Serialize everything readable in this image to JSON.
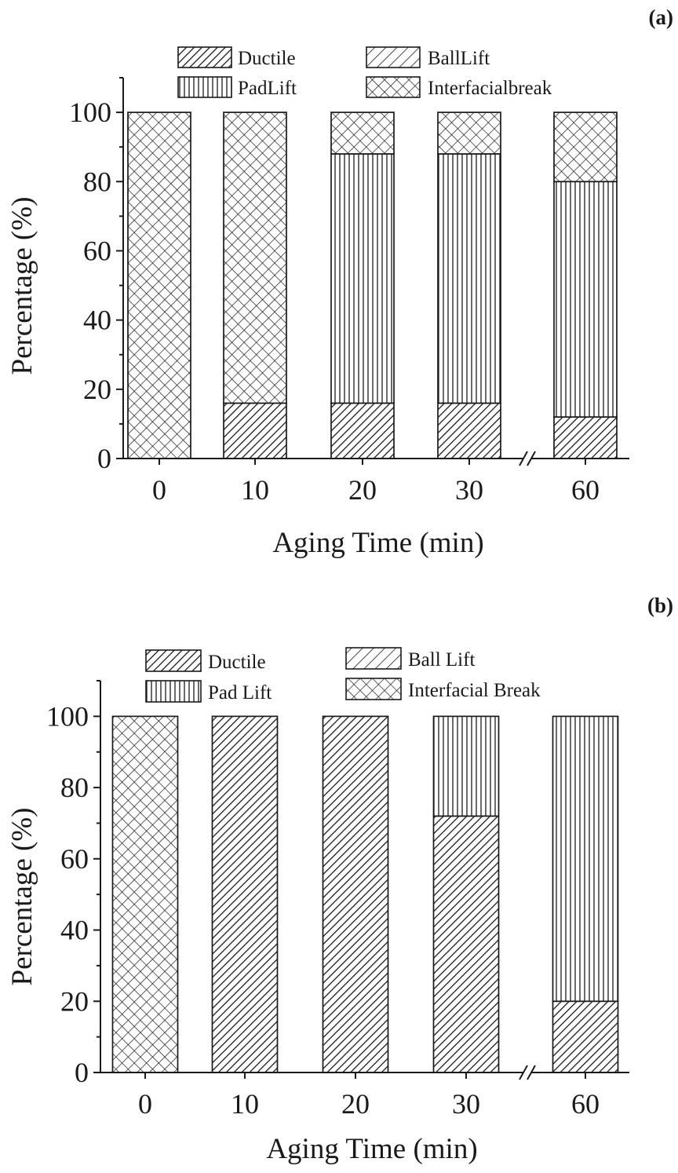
{
  "chart_data": [
    {
      "type": "bar",
      "panel_label": "(a)",
      "xlabel": "Aging Time (min)",
      "ylabel": "Percentage (%)",
      "ylim": [
        0,
        110
      ],
      "yticks": [
        "0",
        "20",
        "40",
        "60",
        "80",
        "100"
      ],
      "categories": [
        "0",
        "10",
        "20",
        "30",
        "60"
      ],
      "axis_break_between": [
        "30",
        "60"
      ],
      "stacked": true,
      "legend": [
        "Ductile",
        "BallLift",
        "PadLift",
        "Interfacialbreak"
      ],
      "series": [
        {
          "name": "Ductile",
          "pattern": "dense-diagonal",
          "values": [
            0,
            16,
            16,
            16,
            12
          ]
        },
        {
          "name": "BallLift",
          "pattern": "diagonal",
          "values": [
            0,
            0,
            0,
            0,
            0
          ]
        },
        {
          "name": "PadLift",
          "pattern": "vertical",
          "values": [
            0,
            0,
            72,
            72,
            68
          ]
        },
        {
          "name": "Interfacialbreak",
          "pattern": "crosshatch",
          "values": [
            100,
            84,
            12,
            12,
            20
          ]
        }
      ]
    },
    {
      "type": "bar",
      "panel_label": "(b)",
      "xlabel": "Aging Time (min)",
      "ylabel": "Percentage (%)",
      "ylim": [
        0,
        110
      ],
      "yticks": [
        "0",
        "20",
        "40",
        "60",
        "80",
        "100"
      ],
      "categories": [
        "0",
        "10",
        "20",
        "30",
        "60"
      ],
      "axis_break_between": [
        "30",
        "60"
      ],
      "stacked": true,
      "legend": [
        "Ductile",
        "Ball Lift",
        "Pad Lift",
        "Interfacial Break"
      ],
      "series": [
        {
          "name": "Ductile",
          "pattern": "dense-diagonal",
          "values": [
            0,
            100,
            100,
            72,
            20
          ]
        },
        {
          "name": "Ball Lift",
          "pattern": "diagonal",
          "values": [
            0,
            0,
            0,
            0,
            0
          ]
        },
        {
          "name": "Pad Lift",
          "pattern": "vertical",
          "values": [
            0,
            0,
            0,
            28,
            80
          ]
        },
        {
          "name": "Interfacial Break",
          "pattern": "crosshatch",
          "values": [
            100,
            0,
            0,
            0,
            0
          ]
        }
      ]
    }
  ]
}
